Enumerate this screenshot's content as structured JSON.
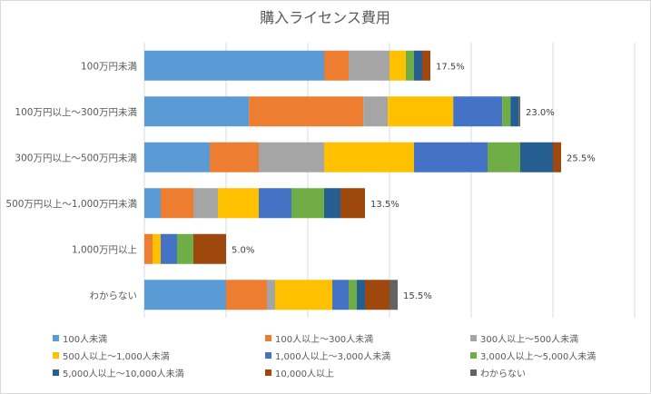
{
  "chart_data": {
    "type": "bar",
    "orientation": "horizontal",
    "stacked": true,
    "title": "購入ライセンス費用",
    "categories": [
      "100万円未満",
      "100万円以上～300万円未満",
      "300万円以上～500万円未満",
      "500万円以上～1,000万円未満",
      "1,000万円以上",
      "わからない"
    ],
    "totals": [
      "17.5%",
      "23.0%",
      "25.5%",
      "13.5%",
      "5.0%",
      "15.5%"
    ],
    "series": [
      {
        "name": "100人未満",
        "color": "#5b9bd5",
        "values": [
          11.0,
          6.4,
          4.0,
          1.0,
          0.0,
          5.0
        ]
      },
      {
        "name": "100人以上～300人未満",
        "color": "#ed7d31",
        "values": [
          1.5,
          7.0,
          3.0,
          2.0,
          0.5,
          2.5
        ]
      },
      {
        "name": "300人以上～500人未満",
        "color": "#a5a5a5",
        "values": [
          2.5,
          1.5,
          4.0,
          1.5,
          0.0,
          0.5
        ]
      },
      {
        "name": "500人以上～1,000人未満",
        "color": "#ffc000",
        "values": [
          1.0,
          4.0,
          5.5,
          2.5,
          0.5,
          3.5
        ]
      },
      {
        "name": "1,000人以上～3,000人未満",
        "color": "#4472c4",
        "values": [
          0.0,
          3.0,
          4.5,
          2.0,
          1.0,
          1.0
        ]
      },
      {
        "name": "3,000人以上～5,000人未満",
        "color": "#70ad47",
        "values": [
          0.5,
          0.5,
          2.0,
          2.0,
          1.0,
          0.5
        ]
      },
      {
        "name": "5,000人以上～10,000人未満",
        "color": "#255e91",
        "values": [
          0.5,
          0.5,
          2.0,
          1.0,
          0.0,
          0.5
        ]
      },
      {
        "name": "10,000人以上",
        "color": "#9e480e",
        "values": [
          0.5,
          0.0,
          0.5,
          1.5,
          2.0,
          1.5
        ]
      },
      {
        "name": "わからない",
        "color": "#636363",
        "values": [
          0.0,
          0.1,
          0.0,
          0.0,
          0.0,
          0.5
        ]
      }
    ],
    "xlim": [
      0,
      30
    ],
    "x_gridlines": true,
    "legend_position": "bottom"
  }
}
